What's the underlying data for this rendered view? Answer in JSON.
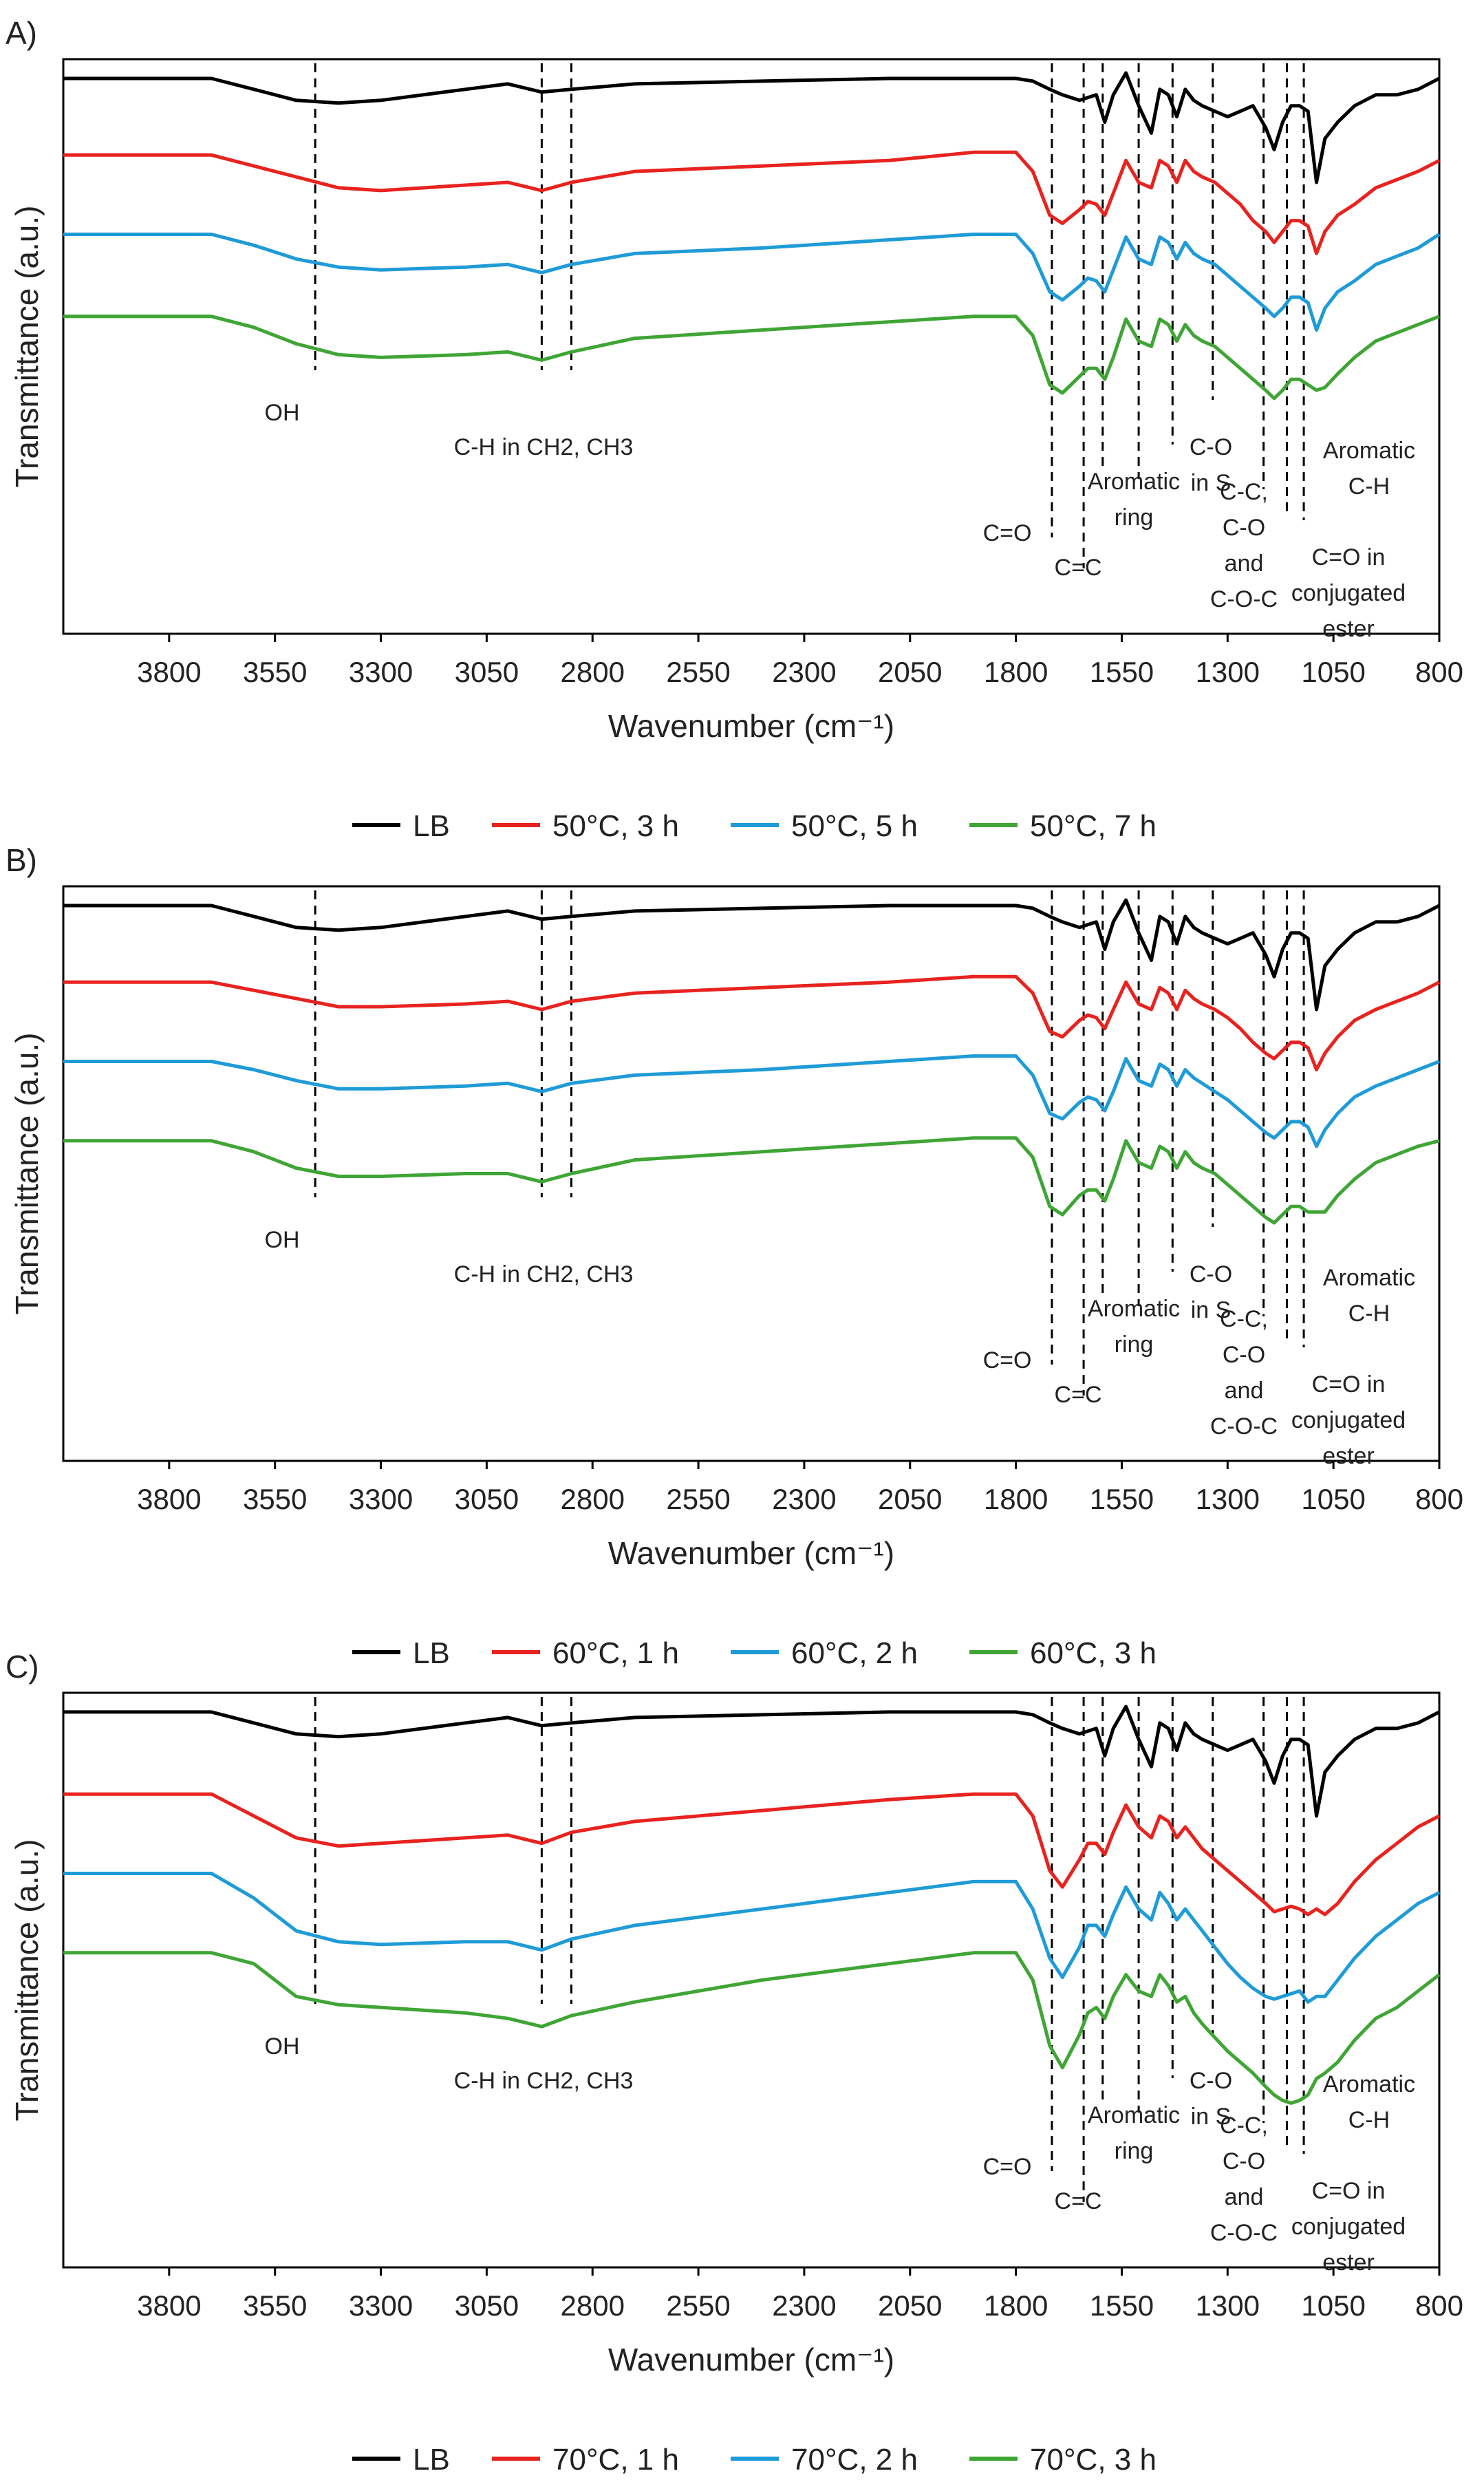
{
  "panels": [
    {
      "label": "A)",
      "legend": [
        "LB",
        "50°C, 3 h",
        "50°C, 5 h",
        "50°C, 7 h"
      ]
    },
    {
      "label": "B)",
      "legend": [
        "LB",
        "60°C, 1 h",
        "60°C, 2 h",
        "60°C, 3 h"
      ]
    },
    {
      "label": "C)",
      "legend": [
        "LB",
        "70°C, 1 h",
        "70°C, 2 h",
        "70°C, 3 h"
      ]
    }
  ],
  "colors": [
    "#000000",
    "#e8231f",
    "#1f9bd7",
    "#3fa535"
  ],
  "chart_data": [
    {
      "type": "line",
      "title": "A)",
      "xlabel": "Wavenumber (cm⁻¹)",
      "ylabel": "Transmittance (a.u.)",
      "x_ticks": [
        3800,
        3550,
        3300,
        3050,
        2800,
        2550,
        2300,
        2050,
        1800,
        1550,
        1300,
        1050,
        800
      ],
      "xlim": [
        4050,
        800
      ],
      "ylim": [
        0,
        100
      ],
      "x_reversed": true,
      "grid": false,
      "legend_position": "bottom",
      "x": [
        4050,
        3700,
        3600,
        3500,
        3400,
        3300,
        3100,
        3000,
        2920,
        2850,
        2700,
        2400,
        2100,
        1900,
        1800,
        1760,
        1720,
        1690,
        1650,
        1630,
        1610,
        1590,
        1570,
        1540,
        1510,
        1480,
        1460,
        1440,
        1420,
        1400,
        1380,
        1360,
        1330,
        1300,
        1270,
        1240,
        1210,
        1190,
        1170,
        1150,
        1130,
        1110,
        1090,
        1070,
        1040,
        1000,
        950,
        900,
        850,
        800
      ],
      "series": [
        {
          "name": "LB",
          "values": [
            99,
            99,
            97,
            95,
            94.5,
            95,
            97,
            98,
            96.5,
            97,
            98,
            98.5,
            99,
            99,
            99,
            98.5,
            97,
            96,
            95,
            95.5,
            96,
            91,
            96,
            100,
            94,
            89,
            97,
            96,
            92,
            97,
            95,
            94,
            93,
            92,
            93,
            94,
            90,
            86,
            91,
            94,
            94,
            93,
            80,
            88,
            91,
            94,
            96,
            96,
            97,
            99
          ]
        },
        {
          "name": "50°C, 3 h",
          "values": [
            85,
            85,
            83,
            81,
            79,
            78.5,
            79.5,
            80,
            78.5,
            80,
            82,
            83,
            84,
            85.5,
            85.5,
            82,
            74,
            72.5,
            75,
            76.5,
            76,
            74,
            78,
            84,
            80,
            79,
            84,
            83,
            80,
            84,
            82,
            81,
            80,
            78,
            76,
            73,
            71,
            69,
            71,
            73,
            73,
            72,
            67,
            71,
            74,
            76,
            79,
            80.5,
            82,
            84
          ]
        },
        {
          "name": "50°C, 5 h",
          "values": [
            70.5,
            70.5,
            68.5,
            66,
            64.5,
            64,
            64.5,
            65,
            63.5,
            65,
            67,
            68,
            69.5,
            70.5,
            70.5,
            67,
            60,
            58.5,
            61,
            62.5,
            62,
            60,
            64,
            70,
            66,
            65,
            70,
            69,
            66,
            69,
            67,
            66,
            65,
            63,
            61,
            59,
            57,
            55.5,
            57,
            59,
            59,
            58,
            53,
            57,
            60,
            62,
            65,
            66.5,
            68,
            70.5
          ]
        },
        {
          "name": "50°C, 7 h",
          "values": [
            55.5,
            55.5,
            53.5,
            50.5,
            48.5,
            48,
            48.5,
            49,
            47.5,
            49,
            51.5,
            53,
            54.5,
            55.5,
            55.5,
            52,
            43,
            41.5,
            44.5,
            46,
            46,
            44,
            48,
            55,
            51,
            50,
            55,
            54,
            51,
            54,
            52,
            51,
            50,
            48,
            46,
            44,
            42,
            40.5,
            42,
            44,
            44,
            43,
            42,
            42.5,
            45,
            48,
            51,
            52.5,
            54,
            55.5
          ]
        }
      ]
    },
    {
      "type": "line",
      "title": "B)",
      "xlabel": "Wavenumber (cm⁻¹)",
      "ylabel": "Transmittance (a.u.)",
      "x_ticks": [
        3800,
        3550,
        3300,
        3050,
        2800,
        2550,
        2300,
        2050,
        1800,
        1550,
        1300,
        1050,
        800
      ],
      "xlim": [
        4050,
        800
      ],
      "ylim": [
        0,
        100
      ],
      "x_reversed": true,
      "grid": false,
      "legend_position": "bottom",
      "x": [
        4050,
        3700,
        3600,
        3500,
        3400,
        3300,
        3100,
        3000,
        2920,
        2850,
        2700,
        2400,
        2100,
        1900,
        1800,
        1760,
        1720,
        1690,
        1650,
        1630,
        1610,
        1590,
        1570,
        1540,
        1510,
        1480,
        1460,
        1440,
        1420,
        1400,
        1380,
        1360,
        1330,
        1300,
        1270,
        1240,
        1210,
        1190,
        1170,
        1150,
        1130,
        1110,
        1090,
        1070,
        1040,
        1000,
        950,
        900,
        850,
        800
      ],
      "series": [
        {
          "name": "LB",
          "values": [
            99,
            99,
            97,
            95,
            94.5,
            95,
            97,
            98,
            96.5,
            97,
            98,
            98.5,
            99,
            99,
            99,
            98.5,
            97,
            96,
            95,
            95.5,
            96,
            91,
            96,
            100,
            94,
            89,
            97,
            96,
            92,
            97,
            95,
            94,
            93,
            92,
            93,
            94,
            90,
            86,
            91,
            94,
            94,
            93,
            80,
            88,
            91,
            94,
            96,
            96,
            97,
            99
          ]
        },
        {
          "name": "60°C, 1 h",
          "values": [
            85,
            85,
            83.5,
            82,
            80.5,
            80.5,
            81,
            81.5,
            80,
            81.5,
            83,
            84,
            85,
            86,
            86,
            83,
            76,
            75,
            78,
            79,
            78.5,
            76.5,
            80,
            85,
            81,
            80,
            84,
            83,
            80,
            83.5,
            82,
            81,
            80,
            78.5,
            76.5,
            74,
            72,
            71,
            72.5,
            74,
            74,
            73,
            69,
            72,
            75,
            78,
            80,
            81.5,
            83,
            85
          ]
        },
        {
          "name": "60°C, 2 h",
          "values": [
            70.5,
            70.5,
            69,
            67,
            65.5,
            65.5,
            66,
            66.5,
            65,
            66.5,
            68,
            69,
            70.5,
            71.5,
            71.5,
            68,
            61,
            60,
            63,
            64,
            63.5,
            61.5,
            65,
            71,
            67,
            66,
            70,
            69,
            66,
            69,
            67.5,
            66.5,
            65,
            63.5,
            61.5,
            59.5,
            57.5,
            56.5,
            58,
            59.5,
            59.5,
            58.5,
            55,
            58,
            61,
            64,
            66,
            67.5,
            69,
            70.5
          ]
        },
        {
          "name": "60°C, 3 h",
          "values": [
            56,
            56,
            54,
            51,
            49.5,
            49.5,
            50,
            50,
            48.5,
            50,
            52.5,
            54,
            55.5,
            56.5,
            56.5,
            53,
            44,
            42.5,
            46,
            47,
            47,
            45,
            49,
            56,
            52,
            51,
            55,
            54,
            51,
            54,
            52,
            51,
            50,
            48,
            46,
            44,
            42,
            41,
            42.5,
            44,
            44,
            43,
            43,
            43,
            46,
            49,
            52,
            53.5,
            55,
            56
          ]
        }
      ]
    },
    {
      "type": "line",
      "title": "C)",
      "xlabel": "Wavenumber (cm⁻¹)",
      "ylabel": "Transmittance (a.u.)",
      "x_ticks": [
        3800,
        3550,
        3300,
        3050,
        2800,
        2550,
        2300,
        2050,
        1800,
        1550,
        1300,
        1050,
        800
      ],
      "xlim": [
        4050,
        800
      ],
      "ylim": [
        0,
        100
      ],
      "x_reversed": true,
      "grid": false,
      "legend_position": "bottom",
      "x": [
        4050,
        3700,
        3600,
        3500,
        3400,
        3300,
        3100,
        3000,
        2920,
        2850,
        2700,
        2400,
        2100,
        1900,
        1800,
        1760,
        1720,
        1690,
        1650,
        1630,
        1610,
        1590,
        1570,
        1540,
        1510,
        1480,
        1460,
        1440,
        1420,
        1400,
        1380,
        1360,
        1330,
        1300,
        1270,
        1240,
        1210,
        1190,
        1170,
        1150,
        1130,
        1110,
        1090,
        1070,
        1040,
        1000,
        950,
        900,
        850,
        800
      ],
      "series": [
        {
          "name": "LB",
          "values": [
            99,
            99,
            97,
            95,
            94.5,
            95,
            97,
            98,
            96.5,
            97,
            98,
            98.5,
            99,
            99,
            99,
            98.5,
            97,
            96,
            95,
            95.5,
            96,
            91,
            96,
            100,
            94,
            89,
            97,
            96,
            92,
            97,
            95,
            94,
            93,
            92,
            93,
            94,
            90,
            86,
            91,
            94,
            94,
            93,
            80,
            88,
            91,
            94,
            96,
            96,
            97,
            99
          ]
        },
        {
          "name": "70°C, 1 h",
          "values": [
            84,
            84,
            80,
            76,
            74.5,
            75,
            76,
            76.5,
            75,
            77,
            79,
            81,
            83,
            84,
            84,
            80,
            70,
            67,
            72,
            75,
            75,
            73,
            77,
            82,
            78,
            76,
            80,
            79,
            76,
            78,
            76,
            74,
            72,
            70,
            68,
            66,
            64,
            62.5,
            63,
            63.5,
            63,
            62,
            63,
            62,
            64,
            68,
            72,
            75,
            78,
            80
          ]
        },
        {
          "name": "70°C, 2 h",
          "values": [
            69.5,
            69.5,
            65,
            59,
            57,
            56.5,
            57,
            57,
            55.5,
            57.5,
            60,
            63,
            66,
            68,
            68,
            63,
            54,
            50.5,
            56,
            60,
            60,
            58,
            62,
            67,
            63,
            61,
            66,
            64,
            61,
            63,
            61,
            59,
            56,
            53,
            50.5,
            48.5,
            47,
            46.5,
            47,
            47.5,
            48,
            46,
            47,
            47,
            50,
            54,
            58,
            61,
            64,
            66
          ]
        },
        {
          "name": "70°C, 3 h",
          "values": [
            55,
            55,
            53,
            47,
            45.5,
            45,
            44,
            43,
            41.5,
            43.5,
            46,
            50,
            53,
            55,
            55,
            50,
            38,
            34,
            40,
            44,
            45,
            43,
            47,
            51,
            48,
            47,
            51,
            49,
            46,
            47,
            44,
            42,
            39.5,
            37,
            35,
            33,
            30.5,
            29,
            28,
            27.5,
            28,
            29,
            32,
            33,
            35,
            39,
            43,
            45,
            48,
            51
          ]
        }
      ]
    }
  ],
  "annotations": [
    {
      "key": "oh",
      "lines": [
        "OH"
      ]
    },
    {
      "key": "ch",
      "lines": [
        "C-H in CH2, CH3"
      ]
    },
    {
      "key": "co",
      "lines": [
        "C=O"
      ]
    },
    {
      "key": "cc",
      "lines": [
        "C=C"
      ]
    },
    {
      "key": "arom",
      "lines": [
        "Aromatic",
        "ring"
      ]
    },
    {
      "key": "cos",
      "lines": [
        "C-O",
        "in S"
      ]
    },
    {
      "key": "ccco",
      "lines": [
        "C-C,",
        "C-O",
        "and",
        "C-O-C"
      ]
    },
    {
      "key": "arch",
      "lines": [
        "Aromatic",
        "C-H"
      ]
    },
    {
      "key": "ester",
      "lines": [
        "C=O in",
        "conjugated",
        "ester"
      ]
    }
  ],
  "marker_lines_cm": [
    3455,
    2920,
    2850,
    1715,
    1640,
    1595,
    1510,
    1430,
    1335,
    1215,
    1160,
    1120
  ]
}
